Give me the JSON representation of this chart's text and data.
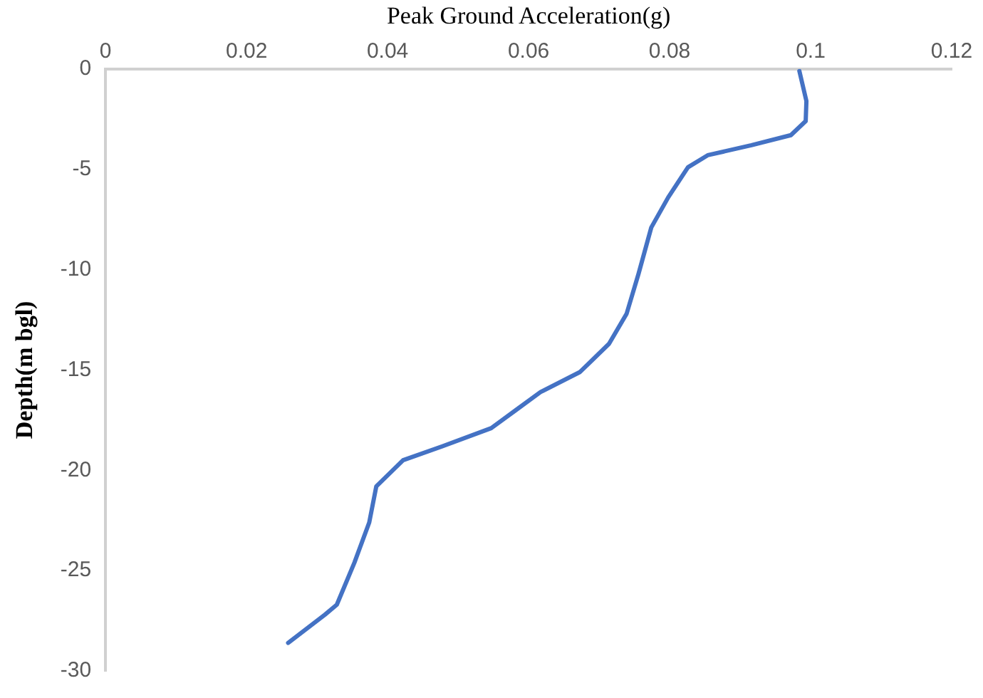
{
  "chart_data": {
    "type": "line",
    "xlabel": "Peak Ground Acceleration(g)",
    "ylabel": "Depth(m bgl)",
    "x": [
      0.0984,
      0.0994,
      0.0993,
      0.0972,
      0.0916,
      0.0854,
      0.0826,
      0.0798,
      0.0774,
      0.0756,
      0.0739,
      0.0714,
      0.0673,
      0.0617,
      0.0582,
      0.0547,
      0.0478,
      0.0422,
      0.0384,
      0.0374,
      0.0353,
      0.0328,
      0.0311,
      0.0259
    ],
    "series": [
      {
        "color": "#4472c4",
        "values": [
          -0.1,
          -1.6,
          -2.6,
          -3.3,
          -3.8,
          -4.3,
          -4.9,
          -6.4,
          -7.9,
          -10.2,
          -12.2,
          -13.7,
          -15.1,
          -16.1,
          -17.0,
          -17.9,
          -18.8,
          -19.5,
          -20.8,
          -22.6,
          -24.6,
          -26.7,
          -27.2,
          -28.6
        ]
      }
    ],
    "xlim": [
      0,
      0.12
    ],
    "xticks": [
      0,
      0.02,
      0.04,
      0.06,
      0.08,
      0.1,
      0.12
    ],
    "ylim": [
      -30,
      0
    ],
    "yticks": [
      0,
      -5,
      -10,
      -15,
      -20,
      -25,
      -30
    ],
    "grid": false,
    "legend": false,
    "marker": "none",
    "line_style": "solid"
  }
}
